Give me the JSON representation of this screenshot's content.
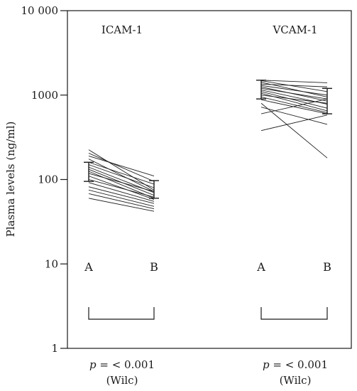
{
  "chart_data": {
    "type": "line",
    "ylabel": "Plasma levels (ng/ml)",
    "yscale": "log",
    "ylim": [
      1,
      10000
    ],
    "y_ticks": [
      {
        "value": 1,
        "label": "1"
      },
      {
        "value": 10,
        "label": "10"
      },
      {
        "value": 100,
        "label": "100"
      },
      {
        "value": 1000,
        "label": "1000"
      },
      {
        "value": 10000,
        "label": "10 000"
      }
    ],
    "grid": false,
    "legend": "none",
    "groups": [
      {
        "name": "ICAM-1",
        "conditions": [
          "A",
          "B"
        ],
        "error_bars": {
          "A": {
            "low": 95,
            "high": 160
          },
          "B": {
            "low": 60,
            "high": 97
          }
        },
        "stat_prefix": "p",
        "stat_value": " = < 0.001",
        "stat_test": "(Wilc)",
        "paired_values": [
          [
            225,
            75
          ],
          [
            205,
            95
          ],
          [
            190,
            110
          ],
          [
            175,
            72
          ],
          [
            160,
            88
          ],
          [
            150,
            80
          ],
          [
            140,
            70
          ],
          [
            132,
            65
          ],
          [
            125,
            60
          ],
          [
            118,
            72
          ],
          [
            110,
            58
          ],
          [
            100,
            62
          ],
          [
            92,
            55
          ],
          [
            82,
            52
          ],
          [
            75,
            48
          ],
          [
            68,
            45
          ],
          [
            60,
            42
          ]
        ]
      },
      {
        "name": "VCAM-1",
        "conditions": [
          "A",
          "B"
        ],
        "error_bars": {
          "A": {
            "low": 900,
            "high": 1500
          },
          "B": {
            "low": 600,
            "high": 1200
          }
        },
        "stat_prefix": "p",
        "stat_value": " = < 0.001",
        "stat_test": "(Wilc)",
        "paired_values": [
          [
            1500,
            1400
          ],
          [
            1480,
            1100
          ],
          [
            1420,
            950
          ],
          [
            1350,
            1250
          ],
          [
            1300,
            1000
          ],
          [
            1250,
            850
          ],
          [
            1200,
            900
          ],
          [
            1150,
            780
          ],
          [
            1100,
            700
          ],
          [
            1050,
            650
          ],
          [
            1000,
            800
          ],
          [
            950,
            620
          ],
          [
            880,
            600
          ],
          [
            800,
            180
          ],
          [
            720,
            450
          ],
          [
            600,
            900
          ],
          [
            380,
            580
          ]
        ]
      }
    ]
  }
}
